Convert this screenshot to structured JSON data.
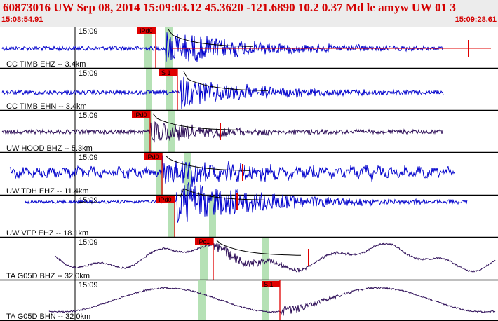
{
  "header": {
    "title": "60873016 UW Sep 08, 2014 15:09:03.12   45.3620 -121.6890 10.2 0.37 Md le amyw UW 01    3",
    "start_time": "15:08:54.91",
    "end_time": "15:09:28.61"
  },
  "colors": {
    "header_bg": "#ececec",
    "header_text": "#d40000",
    "trace_blue": "#0000cc",
    "trace_purple": "#2a0a55",
    "pick_red": "#e00000",
    "window_green": "#a8dca8"
  },
  "traces": [
    {
      "label": "CC TIMB EHZ -- 3.4km",
      "tick": "15:09",
      "pick": "IPd0",
      "color": "blue"
    },
    {
      "label": "CC TIMB EHN -- 3.4km",
      "tick": "15:09",
      "pick": "S 1",
      "color": "blue"
    },
    {
      "label": "UW HOOD BHZ -- 5.3km",
      "tick": "15:09",
      "pick": "IPd0",
      "color": "purple"
    },
    {
      "label": "UW TDH EHZ -- 11.4km",
      "tick": "15:09",
      "pick": "IPd0",
      "color": "blue"
    },
    {
      "label": "UW VFP EHZ -- 18.1km",
      "tick": "15:09",
      "pick": "IPd0",
      "color": "blue"
    },
    {
      "label": "TA G05D BHZ -- 32.0km",
      "tick": "15:09",
      "pick": "IPc1",
      "color": "purple"
    },
    {
      "label": "TA G05D BHN -- 32.0km",
      "tick": "15:09",
      "pick": "S 1",
      "color": "purple"
    }
  ]
}
